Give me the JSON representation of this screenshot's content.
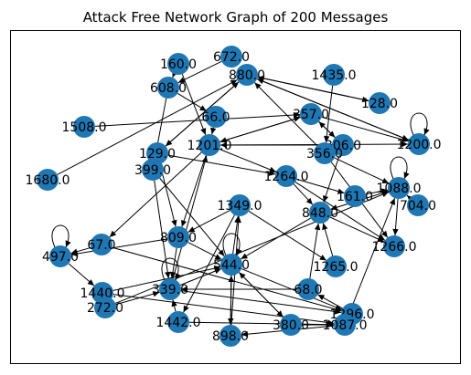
{
  "title": "Attack Free Network Graph of 200 Messages",
  "colors": {
    "node": "#1f77b4",
    "edge": "#000000",
    "frame": "#000000"
  },
  "graph": {
    "nodes": [
      {
        "id": "n160",
        "label": "160.0"
      },
      {
        "id": "n672",
        "label": "672.0"
      },
      {
        "id": "n880",
        "label": "880.0"
      },
      {
        "id": "n608",
        "label": "608.0"
      },
      {
        "id": "n1435",
        "label": "1435.0"
      },
      {
        "id": "n128",
        "label": "128.0"
      },
      {
        "id": "n1508",
        "label": "1508.0"
      },
      {
        "id": "n66",
        "label": "66.0"
      },
      {
        "id": "n357",
        "label": "357.0"
      },
      {
        "id": "n1200",
        "label": "1200.0"
      },
      {
        "id": "n129",
        "label": "129.0"
      },
      {
        "id": "n1201",
        "label": "1201.0"
      },
      {
        "id": "n306",
        "label": "306.0"
      },
      {
        "id": "n356",
        "label": "356.0"
      },
      {
        "id": "n399",
        "label": "399.0"
      },
      {
        "id": "n1680",
        "label": "1680.0"
      },
      {
        "id": "n1264",
        "label": "1264.0"
      },
      {
        "id": "n161",
        "label": "161.0"
      },
      {
        "id": "n1088",
        "label": "1088.0"
      },
      {
        "id": "n704",
        "label": "704.0"
      },
      {
        "id": "n1349",
        "label": "1349.0"
      },
      {
        "id": "n848",
        "label": "848.0"
      },
      {
        "id": "n809",
        "label": "809.0"
      },
      {
        "id": "n67",
        "label": "67.0"
      },
      {
        "id": "n497",
        "label": "497.0"
      },
      {
        "id": "n1266",
        "label": "1266.0"
      },
      {
        "id": "n544",
        "label": "544.0"
      },
      {
        "id": "n1265",
        "label": "1265.0"
      },
      {
        "id": "n1440",
        "label": "1440.0"
      },
      {
        "id": "n339",
        "label": "339.0"
      },
      {
        "id": "n68",
        "label": "68.0"
      },
      {
        "id": "n272",
        "label": "272.0"
      },
      {
        "id": "n1296",
        "label": "1296.0"
      },
      {
        "id": "n1442",
        "label": "1442.0"
      },
      {
        "id": "n898",
        "label": "898.0"
      },
      {
        "id": "n380",
        "label": "380.0"
      },
      {
        "id": "n1087",
        "label": "1087.0"
      }
    ],
    "edges": [
      [
        "n672",
        "n608"
      ],
      [
        "n160",
        "n1201"
      ],
      [
        "n880",
        "n128"
      ],
      [
        "n880",
        "n129"
      ],
      [
        "n608",
        "n399"
      ],
      [
        "n1435",
        "n356"
      ],
      [
        "n880",
        "n1200"
      ],
      [
        "n1508",
        "n357"
      ],
      [
        "n66",
        "n1201"
      ],
      [
        "n357",
        "n1201"
      ],
      [
        "n1200",
        "n880"
      ],
      [
        "n1201",
        "n357"
      ],
      [
        "n1201",
        "n1200"
      ],
      [
        "n129",
        "n880"
      ],
      [
        "n129",
        "n809"
      ],
      [
        "n399",
        "n339"
      ],
      [
        "n1680",
        "n880"
      ],
      [
        "n1201",
        "n67"
      ],
      [
        "n306",
        "n848"
      ],
      [
        "n356",
        "n1266"
      ],
      [
        "n1264",
        "n161"
      ],
      [
        "n1088",
        "n1266"
      ],
      [
        "n704",
        "n1088"
      ],
      [
        "n1349",
        "n1265"
      ],
      [
        "n848",
        "n1266"
      ],
      [
        "n809",
        "n544"
      ],
      [
        "n67",
        "n497"
      ],
      [
        "n497",
        "n1440"
      ],
      [
        "n544",
        "n1296"
      ],
      [
        "n544",
        "n898"
      ],
      [
        "n1265",
        "n848"
      ],
      [
        "n1440",
        "n1087"
      ],
      [
        "n339",
        "n1296"
      ],
      [
        "n68",
        "n848"
      ],
      [
        "n272",
        "n339"
      ],
      [
        "n1442",
        "n339"
      ],
      [
        "n898",
        "n1349"
      ],
      [
        "n380",
        "n544"
      ],
      [
        "n1087",
        "n1088"
      ],
      [
        "n1296",
        "n68"
      ],
      [
        "n339",
        "n1201"
      ],
      [
        "n544",
        "n1349"
      ],
      [
        "n809",
        "n339"
      ],
      [
        "n1349",
        "n809"
      ],
      [
        "n1264",
        "n848"
      ],
      [
        "n306",
        "n1201"
      ],
      [
        "n357",
        "n306"
      ],
      [
        "n356",
        "n880"
      ],
      [
        "n128",
        "n880"
      ],
      [
        "n608",
        "n66"
      ],
      [
        "n160",
        "n608"
      ],
      [
        "n1201",
        "n809"
      ],
      [
        "n399",
        "n544"
      ],
      [
        "n161",
        "n1088"
      ],
      [
        "n848",
        "n544"
      ],
      [
        "n1088",
        "n848"
      ],
      [
        "n1264",
        "n1266"
      ],
      [
        "n1349",
        "n1442"
      ],
      [
        "n809",
        "n497"
      ],
      [
        "n67",
        "n1296"
      ],
      [
        "n544",
        "n380"
      ],
      [
        "n1440",
        "n544"
      ],
      [
        "n272",
        "n1088"
      ],
      [
        "n380",
        "n1087"
      ],
      [
        "n68",
        "n339"
      ],
      [
        "n1087",
        "n898"
      ],
      [
        "n898",
        "n544"
      ],
      [
        "n1442",
        "n1087"
      ],
      [
        "n339",
        "n544"
      ],
      [
        "n129",
        "n1264"
      ],
      [
        "n1201",
        "n1264"
      ],
      [
        "n357",
        "n1200"
      ],
      [
        "n356",
        "n1088"
      ],
      [
        "n306",
        "n357"
      ]
    ],
    "self_loops": [
      "n1200",
      "n1088",
      "n497",
      "n544",
      "n339"
    ]
  }
}
